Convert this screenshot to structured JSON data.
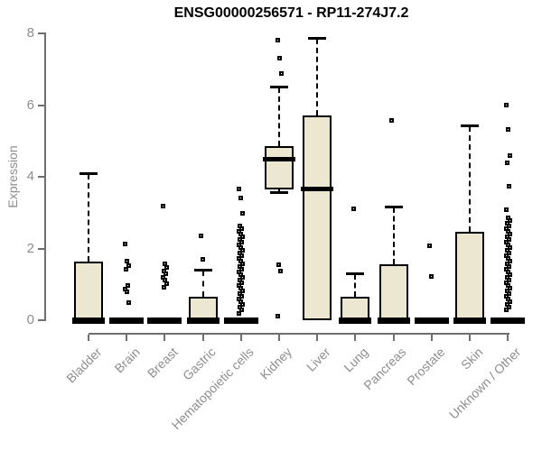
{
  "colors": {
    "box_fill": "#ece7d0",
    "box_border": "#000000",
    "axis_line": "#6f6f6f",
    "tick_label": "#8e8e8e",
    "title_text": "#000000",
    "background": "#ffffff"
  },
  "chart_data": {
    "type": "boxplot",
    "title": "ENSG00000256571 - RP11-274J7.2",
    "xlabel": "",
    "ylabel": "Expression",
    "ylim": [
      0,
      8
    ],
    "yticks": [
      0,
      2,
      4,
      6,
      8
    ],
    "grid": false,
    "legend": "none",
    "categories": [
      "Bladder",
      "Brain",
      "Breast",
      "Gastric",
      "Hematopoietic cells",
      "Kidney",
      "Liver",
      "Lung",
      "Pancreas",
      "Prostate",
      "Skin",
      "Unknown / Other"
    ],
    "series": [
      {
        "name": "Bladder",
        "q1": 0,
        "median": 0,
        "q3": 1.64,
        "whisker_low": 0,
        "whisker_high": 4.08,
        "outliers": []
      },
      {
        "name": "Brain",
        "q1": 0,
        "median": 0,
        "q3": 0,
        "whisker_low": 0,
        "whisker_high": 0,
        "outliers": [
          2.12,
          1.66,
          1.51,
          1.41,
          0.98,
          0.88,
          0.78,
          0.48
        ]
      },
      {
        "name": "Breast",
        "q1": 0,
        "median": 0,
        "q3": 0,
        "whisker_low": 0,
        "whisker_high": 0,
        "outliers": [
          3.17,
          1.56,
          1.47,
          1.38,
          1.29,
          1.2,
          1.11,
          1.02,
          0.93
        ]
      },
      {
        "name": "Gastric",
        "q1": 0,
        "median": 0,
        "q3": 0.65,
        "whisker_low": 0,
        "whisker_high": 1.38,
        "outliers": [
          2.36,
          1.69
        ]
      },
      {
        "name": "Hematopoietic cells",
        "q1": 0,
        "median": 0,
        "q3": 0,
        "whisker_low": 0,
        "whisker_high": 0,
        "outliers": [
          3.65,
          3.42,
          2.99,
          2.62,
          2.55,
          2.47,
          2.4,
          2.32,
          2.25,
          2.17,
          2.1,
          2.02,
          1.95,
          1.87,
          1.8,
          1.72,
          1.65,
          1.57,
          1.5,
          1.42,
          1.35,
          1.27,
          1.2,
          1.12,
          1.05,
          0.97,
          0.9,
          0.82,
          0.75,
          0.67,
          0.6,
          0.52,
          0.45,
          0.37,
          0.3,
          0.2
        ]
      },
      {
        "name": "Kidney",
        "q1": 3.65,
        "median": 4.5,
        "q3": 4.86,
        "whisker_low": 3.57,
        "whisker_high": 6.5,
        "outliers": [
          7.82,
          7.3,
          6.87,
          1.55,
          1.38,
          0.11
        ]
      },
      {
        "name": "Liver",
        "q1": 0,
        "median": 3.65,
        "q3": 5.7,
        "whisker_low": 0,
        "whisker_high": 7.86,
        "outliers": []
      },
      {
        "name": "Lung",
        "q1": 0,
        "median": 0,
        "q3": 0.65,
        "whisker_low": 0,
        "whisker_high": 1.28,
        "outliers": [
          3.1
        ]
      },
      {
        "name": "Pancreas",
        "q1": 0,
        "median": 0,
        "q3": 1.56,
        "whisker_low": 0,
        "whisker_high": 3.14,
        "outliers": [
          5.58
        ]
      },
      {
        "name": "Prostate",
        "q1": 0,
        "median": 0,
        "q3": 0,
        "whisker_low": 0,
        "whisker_high": 0,
        "outliers": [
          2.08,
          1.21
        ]
      },
      {
        "name": "Skin",
        "q1": 0,
        "median": 0,
        "q3": 2.46,
        "whisker_low": 0,
        "whisker_high": 5.41,
        "outliers": []
      },
      {
        "name": "Unknown / Other",
        "q1": 0,
        "median": 0,
        "q3": 0,
        "whisker_low": 0,
        "whisker_high": 0,
        "outliers": [
          5.99,
          5.32,
          4.58,
          4.38,
          3.73,
          3.08,
          2.85,
          2.77,
          2.7,
          2.62,
          2.55,
          2.47,
          2.4,
          2.32,
          2.25,
          2.17,
          2.1,
          2.02,
          1.95,
          1.87,
          1.8,
          1.72,
          1.65,
          1.57,
          1.5,
          1.42,
          1.35,
          1.27,
          1.2,
          1.12,
          1.05,
          0.97,
          0.9,
          0.82,
          0.75,
          0.67,
          0.6,
          0.52,
          0.45,
          0.37,
          0.3
        ]
      }
    ]
  }
}
